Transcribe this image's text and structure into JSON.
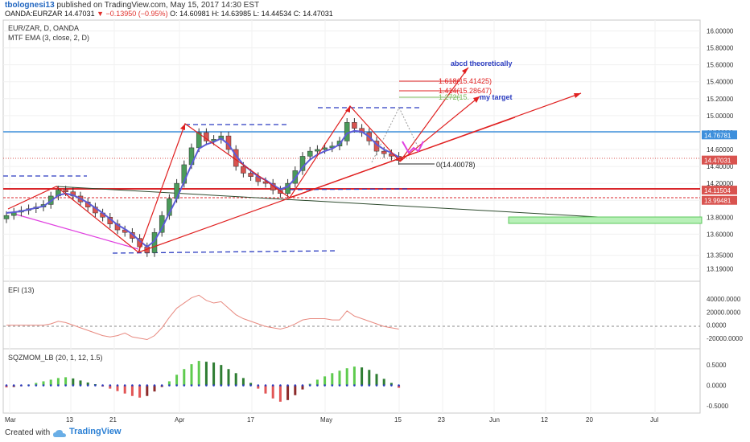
{
  "header": {
    "author": "tbolognesi13",
    "published": "published on TradingView.com, May 15, 2017 14:30 EST",
    "symbol": "OANDA:EURZAR",
    "last": "14.47031",
    "change": "▼ −0.13950 (−0.95%)",
    "ohlc": "O: 14.60981  H: 14.63985  L: 14.44534  C: 14.47031"
  },
  "legend": {
    "symbol": "EUR/ZAR, D, OANDA",
    "ema": "MTF EMA (3, close, 2, D)"
  },
  "colors": {
    "up": "#4a9a5a",
    "down": "#d9534f",
    "ema": "#5b5bd6",
    "arrows": "#e02020",
    "blue_line": "#3d8fdc",
    "magenta": "#e040e0"
  },
  "price_axis": {
    "ticks": [
      "16.00000",
      "15.80000",
      "15.60000",
      "15.40000",
      "15.20000",
      "15.00000",
      "14.80000",
      "14.60000",
      "14.40000",
      "14.20000",
      "14.00000",
      "13.80000",
      "13.60000",
      "13.35000",
      "13.19000"
    ],
    "tags": [
      {
        "value": 14.76781,
        "label": "14.76781",
        "color": "#3d8fdc"
      },
      {
        "value": 14.47031,
        "label": "14.47031",
        "color": "#d9534f"
      },
      {
        "value": 14.11504,
        "label": "14.11504",
        "color": "#d9534f"
      },
      {
        "value": 13.99481,
        "label": "13.99481",
        "color": "#d9534f"
      }
    ]
  },
  "time_axis": [
    "Mar",
    "13",
    "21",
    "Apr",
    "17",
    "May",
    "15",
    "23",
    "Jun",
    "12",
    "20",
    "Jul"
  ],
  "annotations": {
    "abcd": "abcd theoretically",
    "fib1": "1.618(15.41425)",
    "fib2": "1.414(15.28647)",
    "fib3": "1.272(15.",
    "target": "my target",
    "zero": "0(14.40078)"
  },
  "efi": {
    "label": "EFI (13)",
    "ticks": [
      "40000.0000",
      "20000.0000",
      "0.0000",
      "-20000.0000"
    ]
  },
  "sqz": {
    "label": "SQZMOM_LB (20, 1, 12, 1.5)",
    "ticks": [
      "0.5000",
      "0.0000",
      "-0.5000"
    ]
  },
  "footer": {
    "created": "Created with",
    "brand": "TradingView"
  },
  "chart_data": {
    "type": "candlestick",
    "title": "EUR/ZAR, D, OANDA",
    "x_dates": [
      "Mar 1",
      "Mar 2",
      "Mar 3",
      "Mar 6",
      "Mar 7",
      "Mar 8",
      "Mar 9",
      "Mar 10",
      "Mar 13",
      "Mar 14",
      "Mar 15",
      "Mar 16",
      "Mar 17",
      "Mar 20",
      "Mar 21",
      "Mar 22",
      "Mar 23",
      "Mar 24",
      "Mar 27",
      "Mar 28",
      "Mar 29",
      "Mar 30",
      "Mar 31",
      "Apr 3",
      "Apr 4",
      "Apr 5",
      "Apr 6",
      "Apr 7",
      "Apr 10",
      "Apr 11",
      "Apr 12",
      "Apr 13",
      "Apr 14",
      "Apr 17",
      "Apr 18",
      "Apr 19",
      "Apr 20",
      "Apr 21",
      "Apr 24",
      "Apr 25",
      "Apr 26",
      "Apr 27",
      "Apr 28",
      "May 1",
      "May 2",
      "May 3",
      "May 4",
      "May 5",
      "May 8",
      "May 9",
      "May 10",
      "May 11",
      "May 12",
      "May 15"
    ],
    "close": [
      13.82,
      13.86,
      13.88,
      13.9,
      13.92,
      13.95,
      14.05,
      14.12,
      14.1,
      14.05,
      13.98,
      13.92,
      13.85,
      13.8,
      13.72,
      13.65,
      13.62,
      13.55,
      13.45,
      13.38,
      13.62,
      13.82,
      14.02,
      14.2,
      14.42,
      14.62,
      14.8,
      14.7,
      14.72,
      14.76,
      14.6,
      14.4,
      14.32,
      14.28,
      14.22,
      14.2,
      14.12,
      14.08,
      14.2,
      14.35,
      14.52,
      14.58,
      14.6,
      14.62,
      14.64,
      14.7,
      14.92,
      14.85,
      14.8,
      14.7,
      14.58,
      14.55,
      14.52,
      14.47
    ],
    "ema": [
      13.85,
      13.86,
      13.87,
      13.89,
      13.91,
      13.93,
      13.99,
      14.06,
      14.08,
      14.06,
      14.02,
      13.97,
      13.91,
      13.85,
      13.78,
      13.71,
      13.66,
      13.6,
      13.52,
      13.45,
      13.52,
      13.67,
      13.85,
      14.02,
      14.22,
      14.42,
      14.61,
      14.66,
      14.69,
      14.73,
      14.66,
      14.53,
      14.42,
      14.35,
      14.28,
      14.24,
      14.18,
      14.13,
      14.16,
      14.26,
      14.39,
      14.48,
      14.54,
      14.58,
      14.61,
      14.66,
      14.79,
      14.82,
      14.81,
      14.75,
      14.66,
      14.6,
      14.56,
      14.51
    ],
    "efi": [
      0,
      0,
      0,
      0,
      0,
      0,
      2000,
      6000,
      4000,
      0,
      -4000,
      -8000,
      -12000,
      -16000,
      -18000,
      -16000,
      -12000,
      -18000,
      -20000,
      -22000,
      -16000,
      -4000,
      12000,
      26000,
      34000,
      42000,
      46000,
      38000,
      34000,
      36000,
      26000,
      16000,
      10000,
      6000,
      2000,
      -2000,
      -4000,
      -6000,
      -3000,
      2000,
      8000,
      10000,
      10000,
      10000,
      8000,
      8000,
      22000,
      14000,
      10000,
      6000,
      2000,
      -2000,
      -4000,
      -6000
    ],
    "sqz": [
      -0.05,
      -0.04,
      -0.02,
      0.02,
      0.06,
      0.1,
      0.14,
      0.18,
      0.2,
      0.17,
      0.12,
      0.07,
      0.03,
      -0.03,
      -0.08,
      -0.14,
      -0.2,
      -0.26,
      -0.3,
      -0.26,
      -0.15,
      -0.04,
      0.1,
      0.26,
      0.4,
      0.52,
      0.6,
      0.58,
      0.56,
      0.5,
      0.4,
      0.3,
      0.18,
      0.06,
      -0.08,
      -0.2,
      -0.32,
      -0.4,
      -0.36,
      -0.24,
      -0.1,
      0.04,
      0.14,
      0.22,
      0.3,
      0.36,
      0.42,
      0.46,
      0.44,
      0.38,
      0.28,
      0.16,
      0.06,
      -0.06
    ],
    "ylim": [
      13.1,
      16.1
    ]
  }
}
